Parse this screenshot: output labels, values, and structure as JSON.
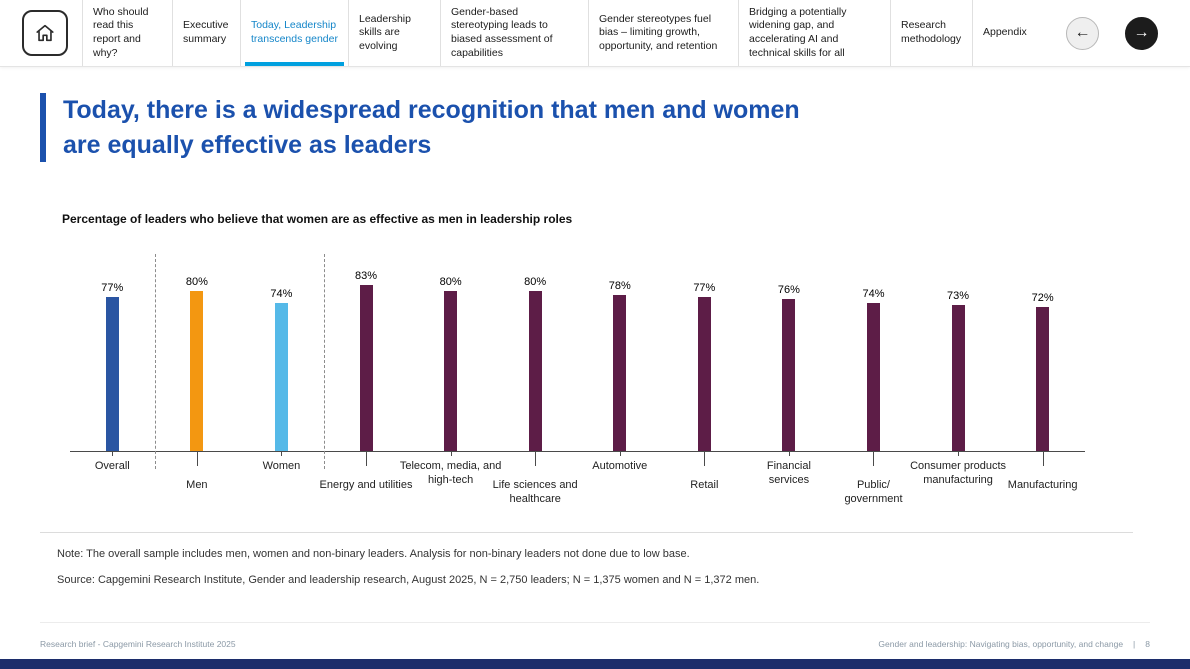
{
  "colors": {
    "accent_blue": "#1b51ad",
    "active_tab": "#1586c9",
    "tab_underline": "#00a0df",
    "bottom_bar": "#1c2d6b"
  },
  "nav": {
    "items": [
      {
        "label": "Who should read this report and why?",
        "active": false
      },
      {
        "label": "Executive summary",
        "active": false
      },
      {
        "label": "Today, Leadership transcends gender",
        "active": true
      },
      {
        "label": "Leadership skills are evolving",
        "active": false
      },
      {
        "label": "Gender-based stereotyping leads to biased assessment of capabilities",
        "active": false
      },
      {
        "label": "Gender stereotypes fuel bias – limiting growth, opportunity, and retention",
        "active": false
      },
      {
        "label": "Bridging a potentially widening gap, and accelerating AI and technical skills for all",
        "active": false
      },
      {
        "label": "Research methodology",
        "active": false
      },
      {
        "label": "Appendix",
        "active": false
      }
    ],
    "home_icon": "home-icon",
    "prev_arrow": "←",
    "next_arrow": "→"
  },
  "page": {
    "title_line1": "Today, there is a widespread recognition that men and women",
    "title_line2": "are equally effective as leaders"
  },
  "chart_data": {
    "type": "bar",
    "title": "Percentage of leaders who believe that women are as effective as men in leadership roles",
    "categories": [
      "Overall",
      "Men",
      "Women",
      "Energy and utilities",
      "Telecom, media, and\nhigh-tech",
      "Life sciences and\nhealthcare",
      "Automotive",
      "Retail",
      "Financial\nservices",
      "Public/\ngovernment",
      "Consumer products\nmanufacturing",
      "Manufacturing"
    ],
    "values": [
      77,
      80,
      74,
      83,
      80,
      80,
      78,
      77,
      76,
      74,
      73,
      72
    ],
    "value_suffix": "%",
    "bar_colors": [
      "#2a55a2",
      "#f39711",
      "#55b9e8",
      "#5d1d47",
      "#5d1d47",
      "#5d1d47",
      "#5d1d47",
      "#5d1d47",
      "#5d1d47",
      "#5d1d47",
      "#5d1d47",
      "#5d1d47"
    ],
    "ylim": [
      0,
      100
    ],
    "grid": false,
    "legend": "none",
    "separators_after": [
      "Overall",
      "Women"
    ]
  },
  "notes": {
    "note": "Note: The overall sample includes men, women and non-binary leaders. Analysis for non-binary leaders not done due to low base.",
    "source": "Source: Capgemini Research Institute, Gender and leadership research, August 2025, N = 2,750 leaders; N = 1,375 women and N = 1,372 men."
  },
  "footer": {
    "left": "Research brief - Capgemini Research Institute 2025",
    "right": "Gender and leadership: Navigating bias, opportunity, and change",
    "divider": "|",
    "page_number": "8"
  }
}
